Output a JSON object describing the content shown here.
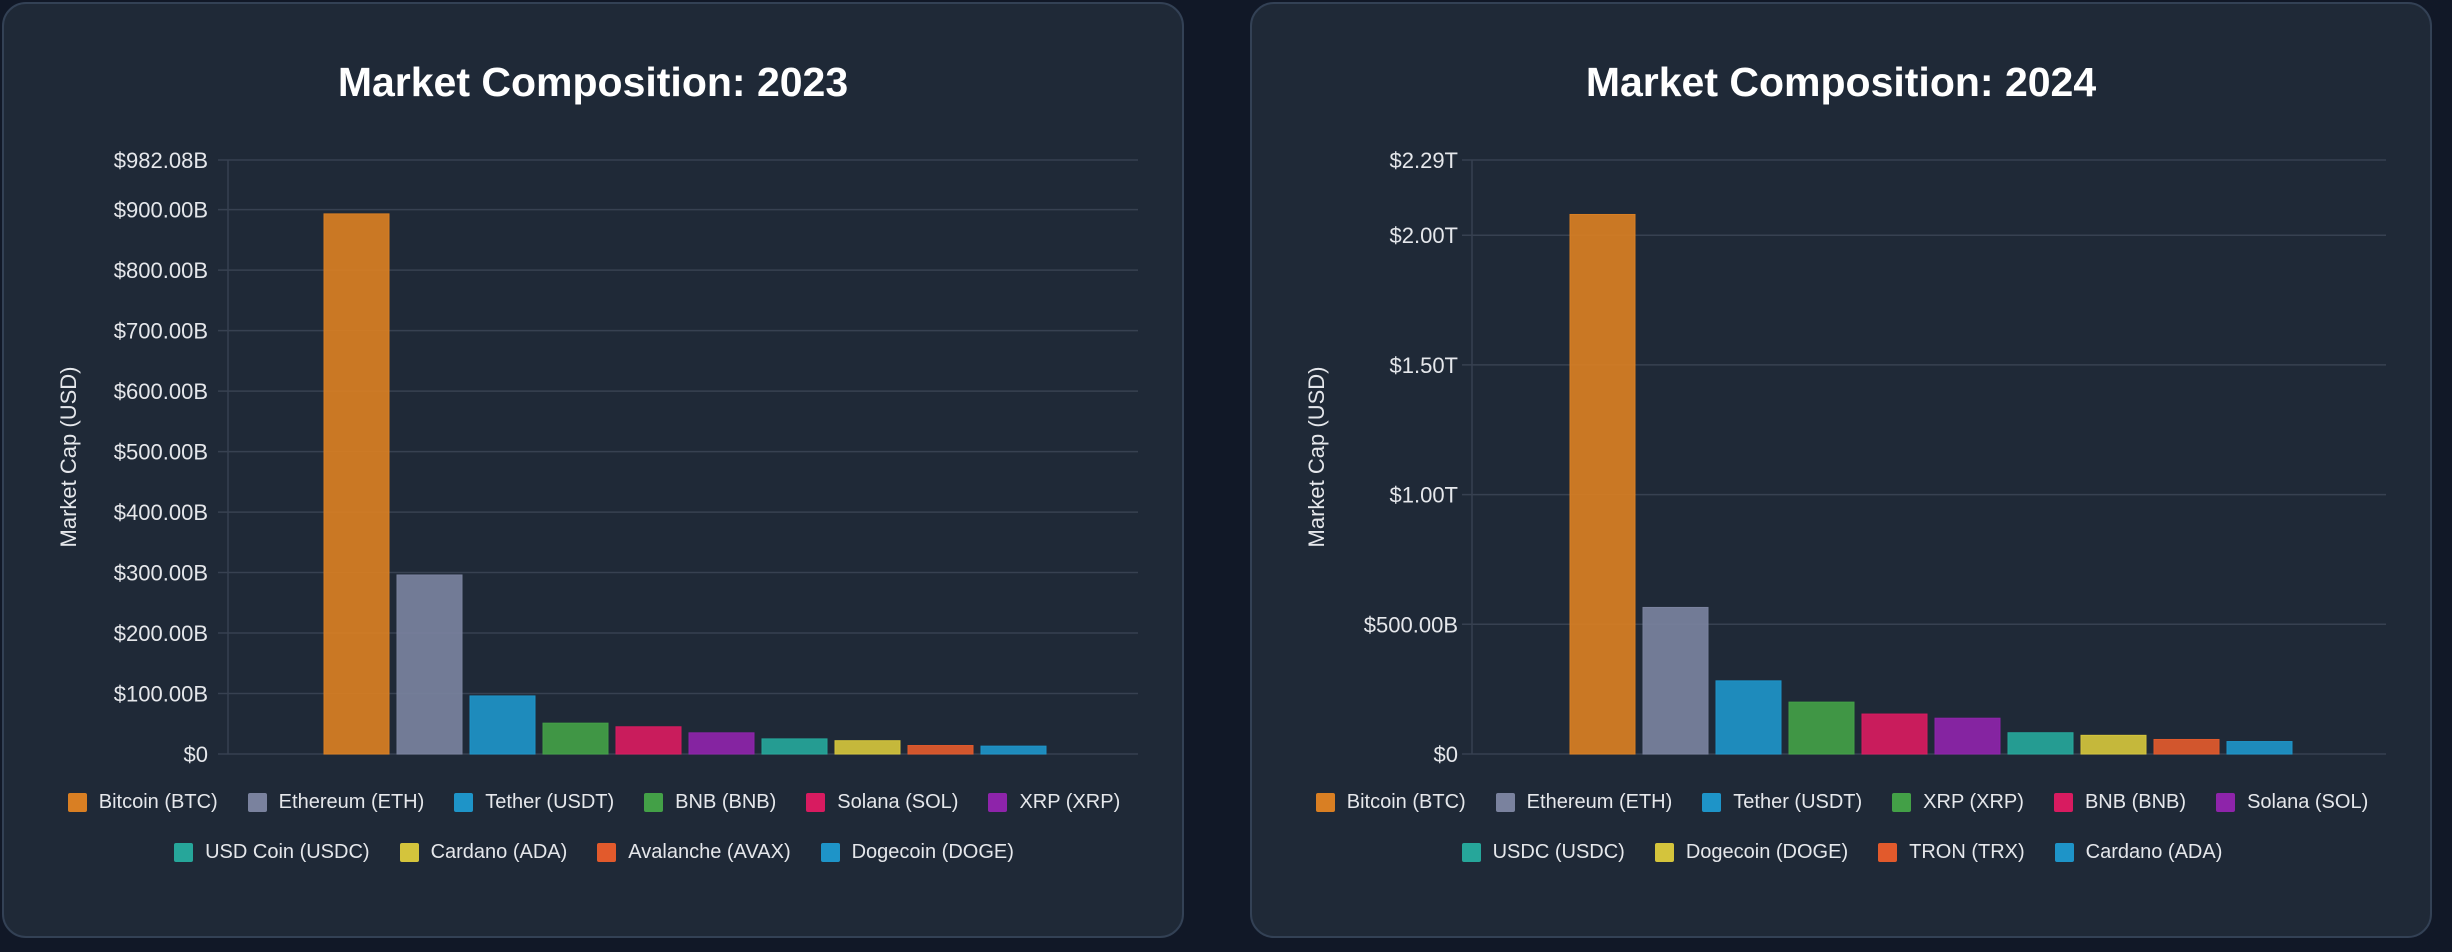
{
  "chart_data": [
    {
      "type": "bar",
      "title": "Market Composition: 2023",
      "ylabel": "Market Cap (USD)",
      "ylim": [
        0,
        982.08
      ],
      "y_unit": "billion USD",
      "y_ticks": [
        {
          "value": 0,
          "label": "$0"
        },
        {
          "value": 100,
          "label": "$100.00B"
        },
        {
          "value": 200,
          "label": "$200.00B"
        },
        {
          "value": 300,
          "label": "$300.00B"
        },
        {
          "value": 400,
          "label": "$400.00B"
        },
        {
          "value": 500,
          "label": "$500.00B"
        },
        {
          "value": 600,
          "label": "$600.00B"
        },
        {
          "value": 700,
          "label": "$700.00B"
        },
        {
          "value": 800,
          "label": "$800.00B"
        },
        {
          "value": 900,
          "label": "$900.00B"
        },
        {
          "value": 982.08,
          "label": "$982.08B"
        }
      ],
      "grid": true,
      "legend_position": "bottom",
      "series": [
        {
          "name": "Bitcoin (BTC)",
          "value": 893,
          "color": "#d97f23"
        },
        {
          "name": "Ethereum (ETH)",
          "value": 296,
          "color": "#7a829e"
        },
        {
          "name": "Tether (USDT)",
          "value": 96,
          "color": "#1e94c8"
        },
        {
          "name": "BNB (BNB)",
          "value": 51,
          "color": "#43a047"
        },
        {
          "name": "Solana (SOL)",
          "value": 45,
          "color": "#d81b60"
        },
        {
          "name": "XRP (XRP)",
          "value": 35,
          "color": "#8e24aa"
        },
        {
          "name": "USD Coin (USDC)",
          "value": 25,
          "color": "#26a69a"
        },
        {
          "name": "Cardano (ADA)",
          "value": 22,
          "color": "#d4c43c"
        },
        {
          "name": "Avalanche (AVAX)",
          "value": 14,
          "color": "#e25a2c"
        },
        {
          "name": "Dogecoin (DOGE)",
          "value": 13,
          "color": "#1e94c8"
        }
      ]
    },
    {
      "type": "bar",
      "title": "Market Composition: 2024",
      "ylabel": "Market Cap (USD)",
      "ylim": [
        0,
        2290
      ],
      "y_unit": "billion USD",
      "y_ticks": [
        {
          "value": 0,
          "label": "$0"
        },
        {
          "value": 500,
          "label": "$500.00B"
        },
        {
          "value": 1000,
          "label": "$1.00T"
        },
        {
          "value": 1500,
          "label": "$1.50T"
        },
        {
          "value": 2000,
          "label": "$2.00T"
        },
        {
          "value": 2290,
          "label": "$2.29T"
        }
      ],
      "grid": true,
      "legend_position": "bottom",
      "series": [
        {
          "name": "Bitcoin (BTC)",
          "value": 2080,
          "color": "#d97f23"
        },
        {
          "name": "Ethereum (ETH)",
          "value": 565,
          "color": "#7a829e"
        },
        {
          "name": "Tether (USDT)",
          "value": 282,
          "color": "#1e94c8"
        },
        {
          "name": "XRP (XRP)",
          "value": 200,
          "color": "#43a047"
        },
        {
          "name": "BNB (BNB)",
          "value": 154,
          "color": "#d81b60"
        },
        {
          "name": "Solana (SOL)",
          "value": 138,
          "color": "#8e24aa"
        },
        {
          "name": "USDC (USDC)",
          "value": 82,
          "color": "#26a69a"
        },
        {
          "name": "Dogecoin (DOGE)",
          "value": 72,
          "color": "#d4c43c"
        },
        {
          "name": "TRON (TRX)",
          "value": 56,
          "color": "#e25a2c"
        },
        {
          "name": "Cardano (ADA)",
          "value": 48,
          "color": "#1e94c8"
        }
      ]
    }
  ]
}
